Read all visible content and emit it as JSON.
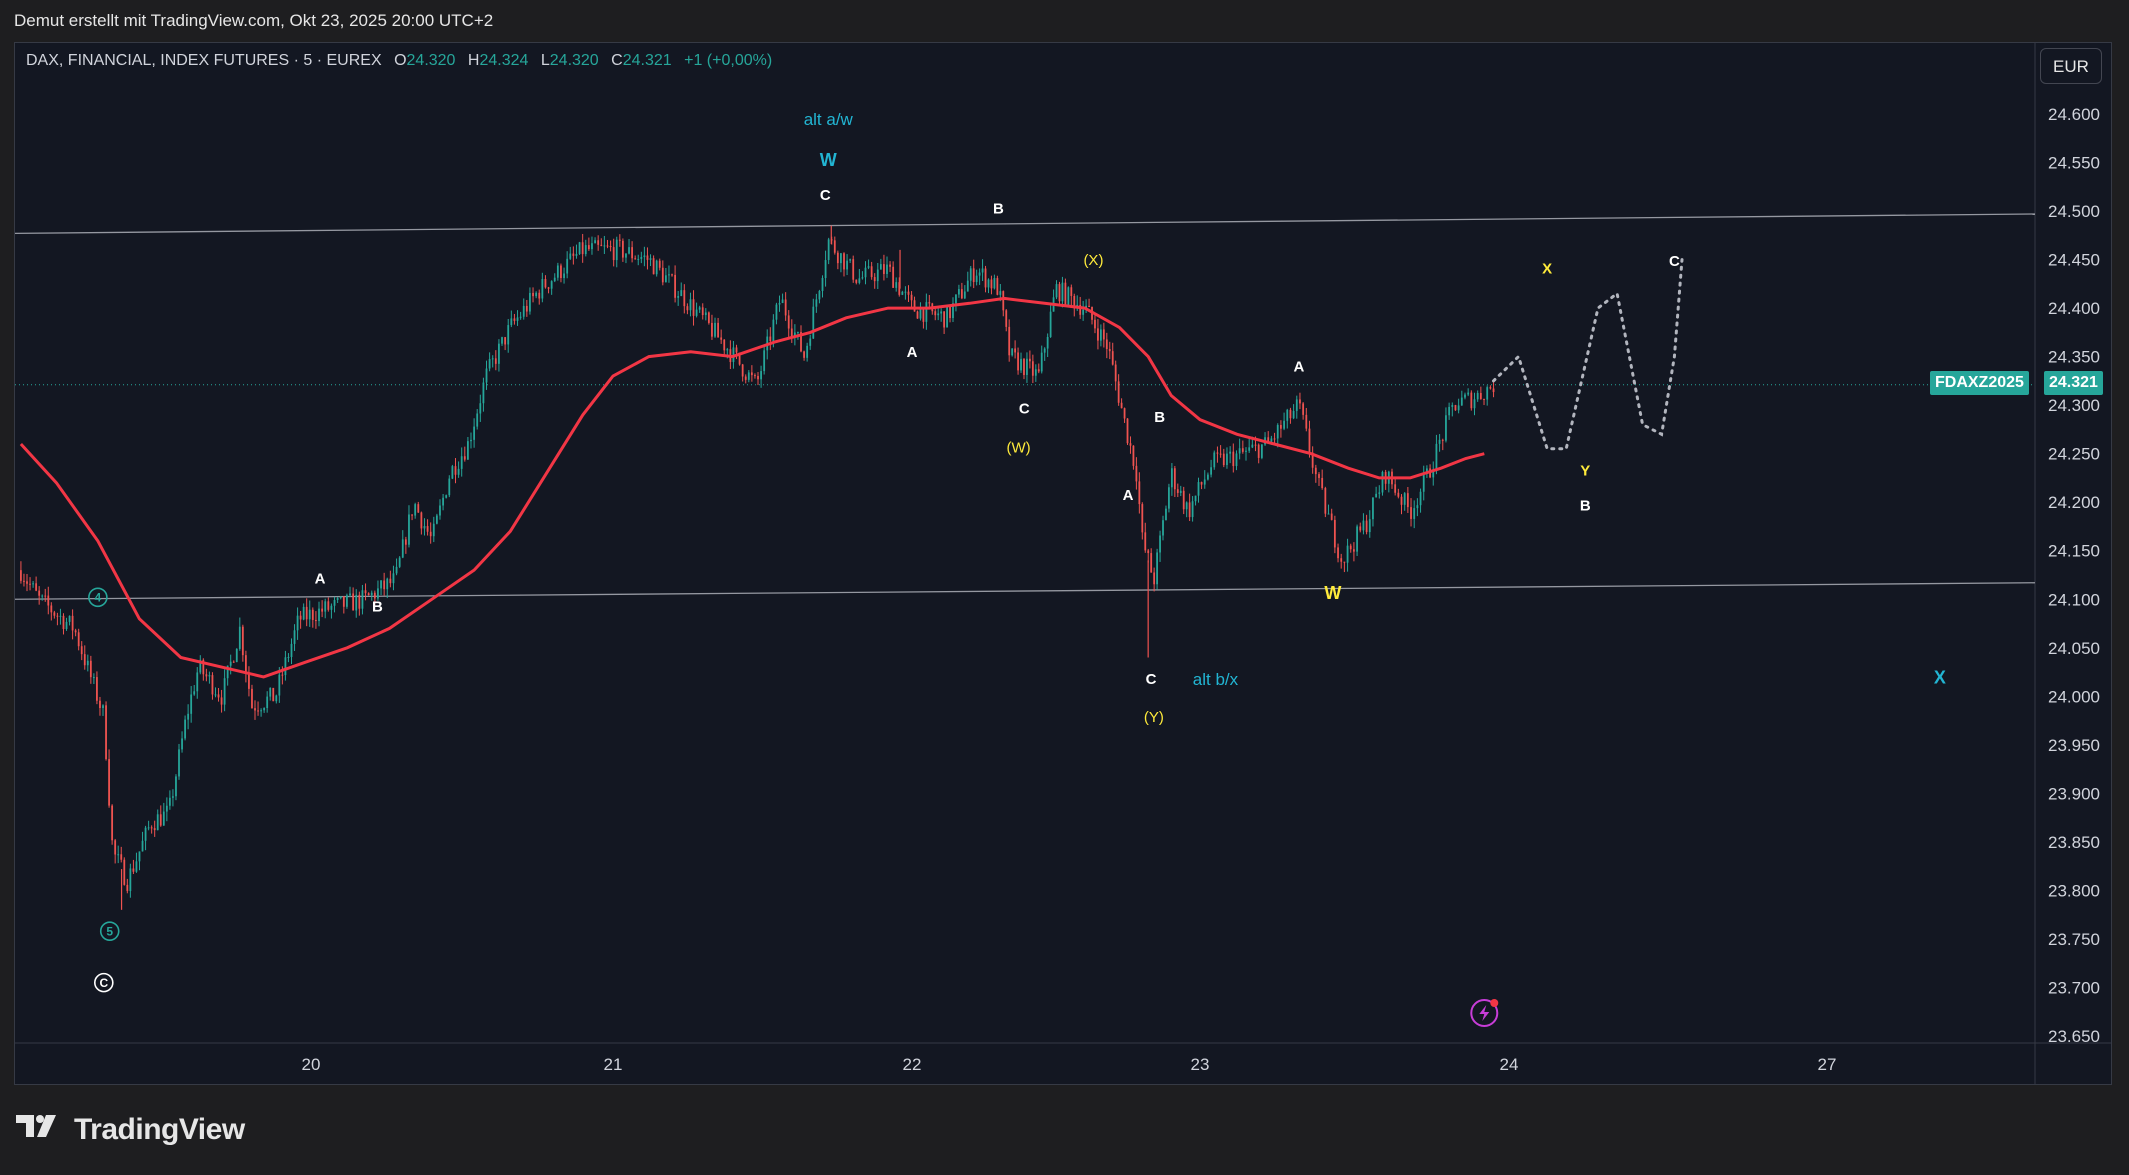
{
  "header": {
    "text": "Demut erstellt mit TradingView.com, Okt 23, 2025 20:00 UTC+2"
  },
  "legend": {
    "symbol": "DAX, FINANCIAL, INDEX FUTURES · 5 · EUREX",
    "o_label": "O",
    "o_value": "24.320",
    "h_label": "H",
    "h_value": "24.324",
    "l_label": "L",
    "l_value": "24.320",
    "c_label": "C",
    "c_value": "24.321",
    "change": "+1 (+0,00%)"
  },
  "currency_button": {
    "label": "EUR"
  },
  "price_tag": {
    "symbol": "FDAXZ2025",
    "price": "24.321"
  },
  "footer": {
    "brand": "TradingView"
  },
  "colors": {
    "background": "#131722",
    "up_candle": "#26a69a",
    "down_candle": "#ef5350",
    "moving_average": "#f23645",
    "label_white": "#ffffff",
    "label_yellow": "#ffeb3b",
    "label_cyan": "#22b5d3",
    "label_teal": "#26a69a",
    "projection": "#b2b5be"
  },
  "chart_data": {
    "type": "line",
    "title": "",
    "xlabel": "",
    "ylabel": "",
    "ylim": [
      23630,
      24650
    ],
    "x_tick_labels": [
      "20",
      "21",
      "22",
      "23",
      "24",
      "27"
    ],
    "y_tick_labels": [
      "24.600",
      "24.550",
      "24.500",
      "24.450",
      "24.400",
      "24.350",
      "24.300",
      "24.250",
      "24.200",
      "24.150",
      "24.100",
      "24.050",
      "24.000",
      "23.950",
      "23.900",
      "23.850",
      "23.800",
      "23.750",
      "23.700",
      "23.650"
    ],
    "x_range_days": [
      19.0,
      27.7
    ],
    "price_path": [
      [
        19.02,
        24130
      ],
      [
        19.08,
        24100
      ],
      [
        19.2,
        24070
      ],
      [
        19.3,
        23980
      ],
      [
        19.33,
        23840
      ],
      [
        19.38,
        23810
      ],
      [
        19.46,
        23870
      ],
      [
        19.52,
        23880
      ],
      [
        19.58,
        23980
      ],
      [
        19.62,
        24030
      ],
      [
        19.7,
        24000
      ],
      [
        19.76,
        24070
      ],
      [
        19.8,
        23990
      ],
      [
        19.88,
        24000
      ],
      [
        19.96,
        24080
      ],
      [
        20.05,
        24090
      ],
      [
        20.18,
        24100
      ],
      [
        20.28,
        24120
      ],
      [
        20.34,
        24200
      ],
      [
        20.4,
        24160
      ],
      [
        20.46,
        24230
      ],
      [
        20.52,
        24260
      ],
      [
        20.58,
        24330
      ],
      [
        20.66,
        24380
      ],
      [
        20.76,
        24420
      ],
      [
        20.9,
        24460
      ],
      [
        21.02,
        24460
      ],
      [
        21.12,
        24450
      ],
      [
        21.24,
        24410
      ],
      [
        21.38,
        24360
      ],
      [
        21.48,
        24320
      ],
      [
        21.56,
        24410
      ],
      [
        21.64,
        24350
      ],
      [
        21.72,
        24470
      ],
      [
        21.82,
        24430
      ],
      [
        21.92,
        24440
      ],
      [
        22.0,
        24400
      ],
      [
        22.12,
        24390
      ],
      [
        22.22,
        24440
      ],
      [
        22.3,
        24420
      ],
      [
        22.34,
        24350
      ],
      [
        22.44,
        24330
      ],
      [
        22.5,
        24420
      ],
      [
        22.6,
        24400
      ],
      [
        22.68,
        24360
      ],
      [
        22.74,
        24280
      ],
      [
        22.78,
        24230
      ],
      [
        22.8,
        24160
      ],
      [
        22.84,
        24120
      ],
      [
        22.9,
        24230
      ],
      [
        22.96,
        24190
      ],
      [
        23.04,
        24240
      ],
      [
        23.14,
        24250
      ],
      [
        23.22,
        24260
      ],
      [
        23.32,
        24300
      ],
      [
        23.38,
        24220
      ],
      [
        23.46,
        24140
      ],
      [
        23.54,
        24180
      ],
      [
        23.6,
        24230
      ],
      [
        23.68,
        24190
      ],
      [
        23.74,
        24230
      ],
      [
        23.82,
        24300
      ],
      [
        23.9,
        24310
      ],
      [
        23.95,
        24321
      ]
    ],
    "wick_extremes": [
      {
        "x": 19.36,
        "low": 23780
      },
      {
        "x": 22.82,
        "low": 24040
      },
      {
        "x": 21.73,
        "high": 24485
      },
      {
        "x": 21.96,
        "high": 24460
      }
    ],
    "series": [
      {
        "values": [
          [
            19.02,
            24260
          ],
          [
            19.14,
            24220
          ],
          [
            19.28,
            24160
          ],
          [
            19.42,
            24080
          ],
          [
            19.56,
            24040
          ],
          [
            19.7,
            24030
          ],
          [
            19.84,
            24020
          ],
          [
            19.98,
            24035
          ],
          [
            20.12,
            24050
          ],
          [
            20.26,
            24070
          ],
          [
            20.4,
            24100
          ],
          [
            20.54,
            24130
          ],
          [
            20.66,
            24170
          ],
          [
            20.78,
            24230
          ],
          [
            20.9,
            24290
          ],
          [
            21.0,
            24330
          ],
          [
            21.12,
            24350
          ],
          [
            21.26,
            24355
          ],
          [
            21.4,
            24350
          ],
          [
            21.54,
            24365
          ],
          [
            21.66,
            24375
          ],
          [
            21.78,
            24390
          ],
          [
            21.92,
            24400
          ],
          [
            22.06,
            24400
          ],
          [
            22.2,
            24405
          ],
          [
            22.32,
            24410
          ],
          [
            22.46,
            24405
          ],
          [
            22.6,
            24400
          ],
          [
            22.72,
            24380
          ],
          [
            22.82,
            24350
          ],
          [
            22.9,
            24310
          ],
          [
            23.0,
            24285
          ],
          [
            23.12,
            24270
          ],
          [
            23.24,
            24260
          ],
          [
            23.36,
            24250
          ],
          [
            23.48,
            24235
          ],
          [
            23.58,
            24225
          ],
          [
            23.68,
            24225
          ],
          [
            23.78,
            24235
          ],
          [
            23.86,
            24245
          ],
          [
            23.92,
            24250
          ]
        ]
      }
    ],
    "projection_path": [
      [
        23.95,
        24325
      ],
      [
        24.03,
        24350
      ],
      [
        24.12,
        24255
      ],
      [
        24.18,
        24255
      ],
      [
        24.28,
        24400
      ],
      [
        24.34,
        24415
      ],
      [
        24.42,
        24280
      ],
      [
        24.48,
        24270
      ],
      [
        24.6,
        24350
      ],
      [
        24.72,
        24450
      ]
    ],
    "trendlines": [
      {
        "x1": 19.0,
        "y1": 24477,
        "x2": 27.7,
        "y2": 24497
      },
      {
        "x1": 19.0,
        "y1": 24100,
        "x2": 27.7,
        "y2": 24117
      }
    ],
    "current_price": 24321,
    "annotations": [
      {
        "text": "alt a/w",
        "x": 21.72,
        "y": 24595,
        "color": "cyan"
      },
      {
        "text": "W",
        "x": 21.72,
        "y": 24553,
        "color": "cyan"
      },
      {
        "text": "C",
        "x": 21.71,
        "y": 24517,
        "color": "white"
      },
      {
        "text": "B",
        "x": 22.3,
        "y": 24503,
        "color": "white"
      },
      {
        "text": "(X)",
        "x": 22.63,
        "y": 24450,
        "color": "yellow"
      },
      {
        "text": "A",
        "x": 22.0,
        "y": 24355,
        "color": "white"
      },
      {
        "text": "C",
        "x": 22.39,
        "y": 24297,
        "color": "white"
      },
      {
        "text": "(W)",
        "x": 22.37,
        "y": 24257,
        "color": "yellow"
      },
      {
        "text": "B",
        "x": 22.86,
        "y": 24288,
        "color": "white"
      },
      {
        "text": "A",
        "x": 22.75,
        "y": 24208,
        "color": "white"
      },
      {
        "text": "C",
        "x": 22.83,
        "y": 24018,
        "color": "white"
      },
      {
        "text": "(Y)",
        "x": 22.84,
        "y": 23979,
        "color": "yellow"
      },
      {
        "text": "alt b/x",
        "x": 23.05,
        "y": 24018,
        "color": "cyan"
      },
      {
        "text": "A",
        "x": 23.32,
        "y": 24340,
        "color": "white"
      },
      {
        "text": "W",
        "x": 23.43,
        "y": 24107,
        "color": "yellow"
      },
      {
        "text": "A",
        "x": 20.03,
        "y": 24122,
        "color": "white"
      },
      {
        "text": "B",
        "x": 20.22,
        "y": 24093,
        "color": "white"
      },
      {
        "text": "X",
        "x": 24.12,
        "y": 24441,
        "color": "yellow"
      },
      {
        "text": "C",
        "x": 24.6,
        "y": 24449,
        "color": "white"
      },
      {
        "text": "Y",
        "x": 24.24,
        "y": 24233,
        "color": "yellow"
      },
      {
        "text": "B",
        "x": 24.24,
        "y": 24197,
        "color": "white"
      },
      {
        "text": "X",
        "x": 27.38,
        "y": 24020,
        "color": "cyan"
      },
      {
        "text": "4",
        "x": 19.28,
        "y": 24102,
        "color": "teal",
        "circled": true
      },
      {
        "text": "5",
        "x": 19.32,
        "y": 23758,
        "color": "teal",
        "circled": true
      },
      {
        "text": "C",
        "x": 19.3,
        "y": 23705,
        "color": "white",
        "circled": true
      }
    ]
  }
}
